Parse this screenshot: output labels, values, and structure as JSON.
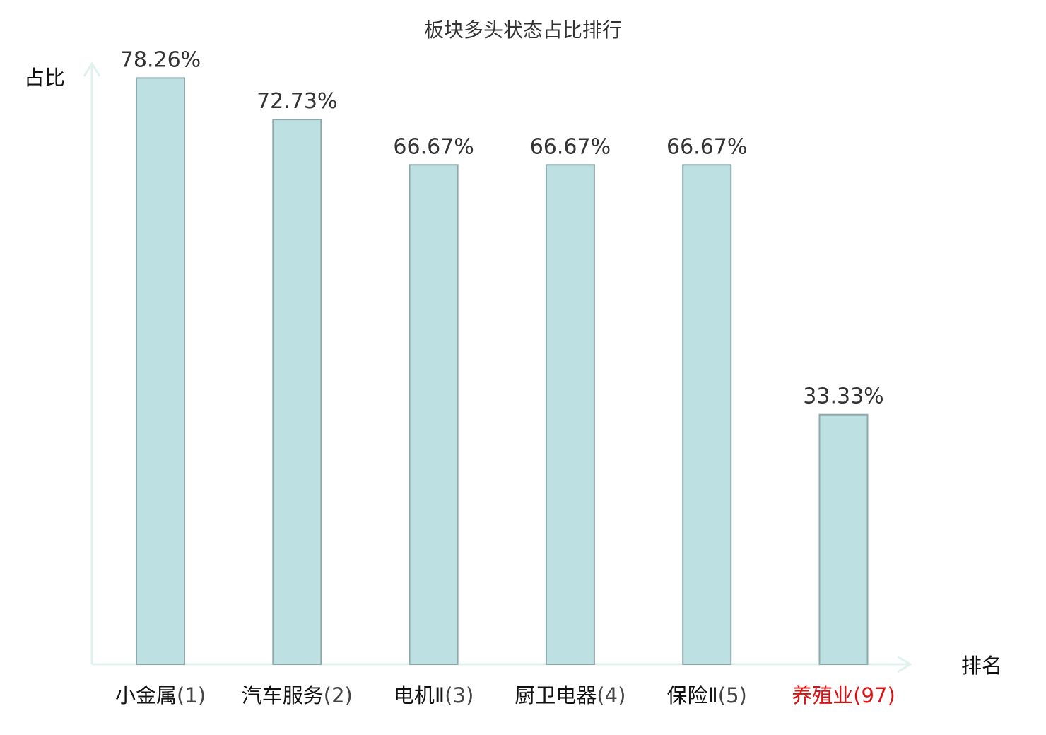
{
  "chart_data": {
    "type": "bar",
    "title": "板块多头状态占比排行",
    "ylabel": "占比",
    "xlabel": "排名",
    "ylim": [
      0,
      100
    ],
    "grid": false,
    "categories": [
      {
        "name": "小金属",
        "rank": "(1)",
        "highlight": false
      },
      {
        "name": "汽车服务",
        "rank": "(2)",
        "highlight": false
      },
      {
        "name": "电机Ⅱ",
        "rank": "(3)",
        "highlight": false
      },
      {
        "name": "厨卫电器",
        "rank": "(4)",
        "highlight": false
      },
      {
        "name": "保险Ⅱ",
        "rank": "(5)",
        "highlight": false
      },
      {
        "name": "养殖业",
        "rank": "(97)",
        "highlight": true
      }
    ],
    "values": [
      78.26,
      72.73,
      66.67,
      66.67,
      66.67,
      33.33
    ],
    "value_labels": [
      "78.26%",
      "72.73%",
      "66.67%",
      "66.67%",
      "66.67%",
      "33.33%"
    ]
  },
  "colors": {
    "bar_fill": "#bde1e3",
    "bar_stroke": "#8fa9aa",
    "axis": "#dff2ee",
    "text": "#333333",
    "category_text": "#111111",
    "rank_text": "#444444",
    "highlight": "#dd1111"
  }
}
